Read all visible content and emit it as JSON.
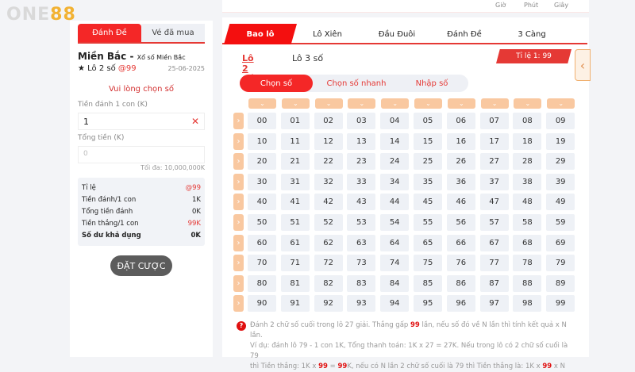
{
  "logo": {
    "part1": "ONE",
    "part2": "88"
  },
  "countdown": {
    "labels": [
      "Giờ",
      "Phút",
      "Giây"
    ]
  },
  "left": {
    "tabs": [
      "Đánh Đề",
      "Vé đã mua"
    ],
    "region": "Miền Bắc -",
    "region_sub": "Xổ số Miền Bắc",
    "bet_type": "★ Lô 2 số",
    "odds": "@99",
    "date": "25-06-2025",
    "warning": "Vui lòng chọn số",
    "amount_label": "Tiền đánh 1 con (K)",
    "amount_value": "1",
    "total_label": "Tổng tiền (K)",
    "total_placeholder": "0",
    "max": "Tối đa: 10,000,000K",
    "summary": [
      {
        "label": "Tỉ lệ",
        "value": "@99"
      },
      {
        "label": "Tiền đánh/1 con",
        "value": "1K"
      },
      {
        "label": "Tổng tiền đánh",
        "value": "0K"
      },
      {
        "label": "Tiền thắng/1 con",
        "value": "99K"
      },
      {
        "label": "Số dư khả dụng",
        "value": "0K"
      }
    ],
    "bet_button": "ĐẶT CƯỢC"
  },
  "main": {
    "tabs": [
      "Bao lô",
      "Lô Xiên",
      "Đầu Đuôi",
      "Đánh Đề",
      "3 Càng"
    ],
    "subtabs": [
      "Lô 2 số",
      "Lô 3 số"
    ],
    "ratio": "Tỉ lệ 1: 99",
    "modes": [
      "Chọn số",
      "Chọn số nhanh",
      "Nhập số"
    ],
    "numbers": [
      "00",
      "01",
      "02",
      "03",
      "04",
      "05",
      "06",
      "07",
      "08",
      "09",
      "10",
      "11",
      "12",
      "13",
      "14",
      "15",
      "16",
      "17",
      "18",
      "19",
      "20",
      "21",
      "22",
      "23",
      "24",
      "25",
      "26",
      "27",
      "28",
      "29",
      "30",
      "31",
      "32",
      "33",
      "34",
      "35",
      "36",
      "37",
      "38",
      "39",
      "40",
      "41",
      "42",
      "43",
      "44",
      "45",
      "46",
      "47",
      "48",
      "49",
      "50",
      "51",
      "52",
      "53",
      "54",
      "55",
      "56",
      "57",
      "58",
      "59",
      "60",
      "61",
      "62",
      "63",
      "64",
      "65",
      "66",
      "67",
      "68",
      "69",
      "70",
      "71",
      "72",
      "73",
      "74",
      "75",
      "76",
      "77",
      "78",
      "79",
      "80",
      "81",
      "82",
      "83",
      "84",
      "85",
      "86",
      "87",
      "88",
      "89",
      "90",
      "91",
      "92",
      "93",
      "94",
      "95",
      "96",
      "97",
      "98",
      "99"
    ],
    "note": {
      "l1a": "Đánh 2 chữ số cuối trong lô 27 giải. Thắng gấp ",
      "l1b": "99",
      "l1c": " lần, nếu số đó về N lần thì tính kết quả x N lần.",
      "l2": "Ví dụ: đánh lô 79 - 1 con 1K, Tổng thanh toán: 1K x 27 = 27K. Nếu trong lô có 2 chữ số cuối là 79",
      "l3a": "thì Tiền thắng: 1K x ",
      "l3b": "99",
      "l3c": " = ",
      "l3d": "99",
      "l3e": "K, nếu có N lần 2 chữ số cuối là 79 thì Tiền thắng là: 1K x ",
      "l3f": "99",
      "l3g": " x N"
    }
  }
}
